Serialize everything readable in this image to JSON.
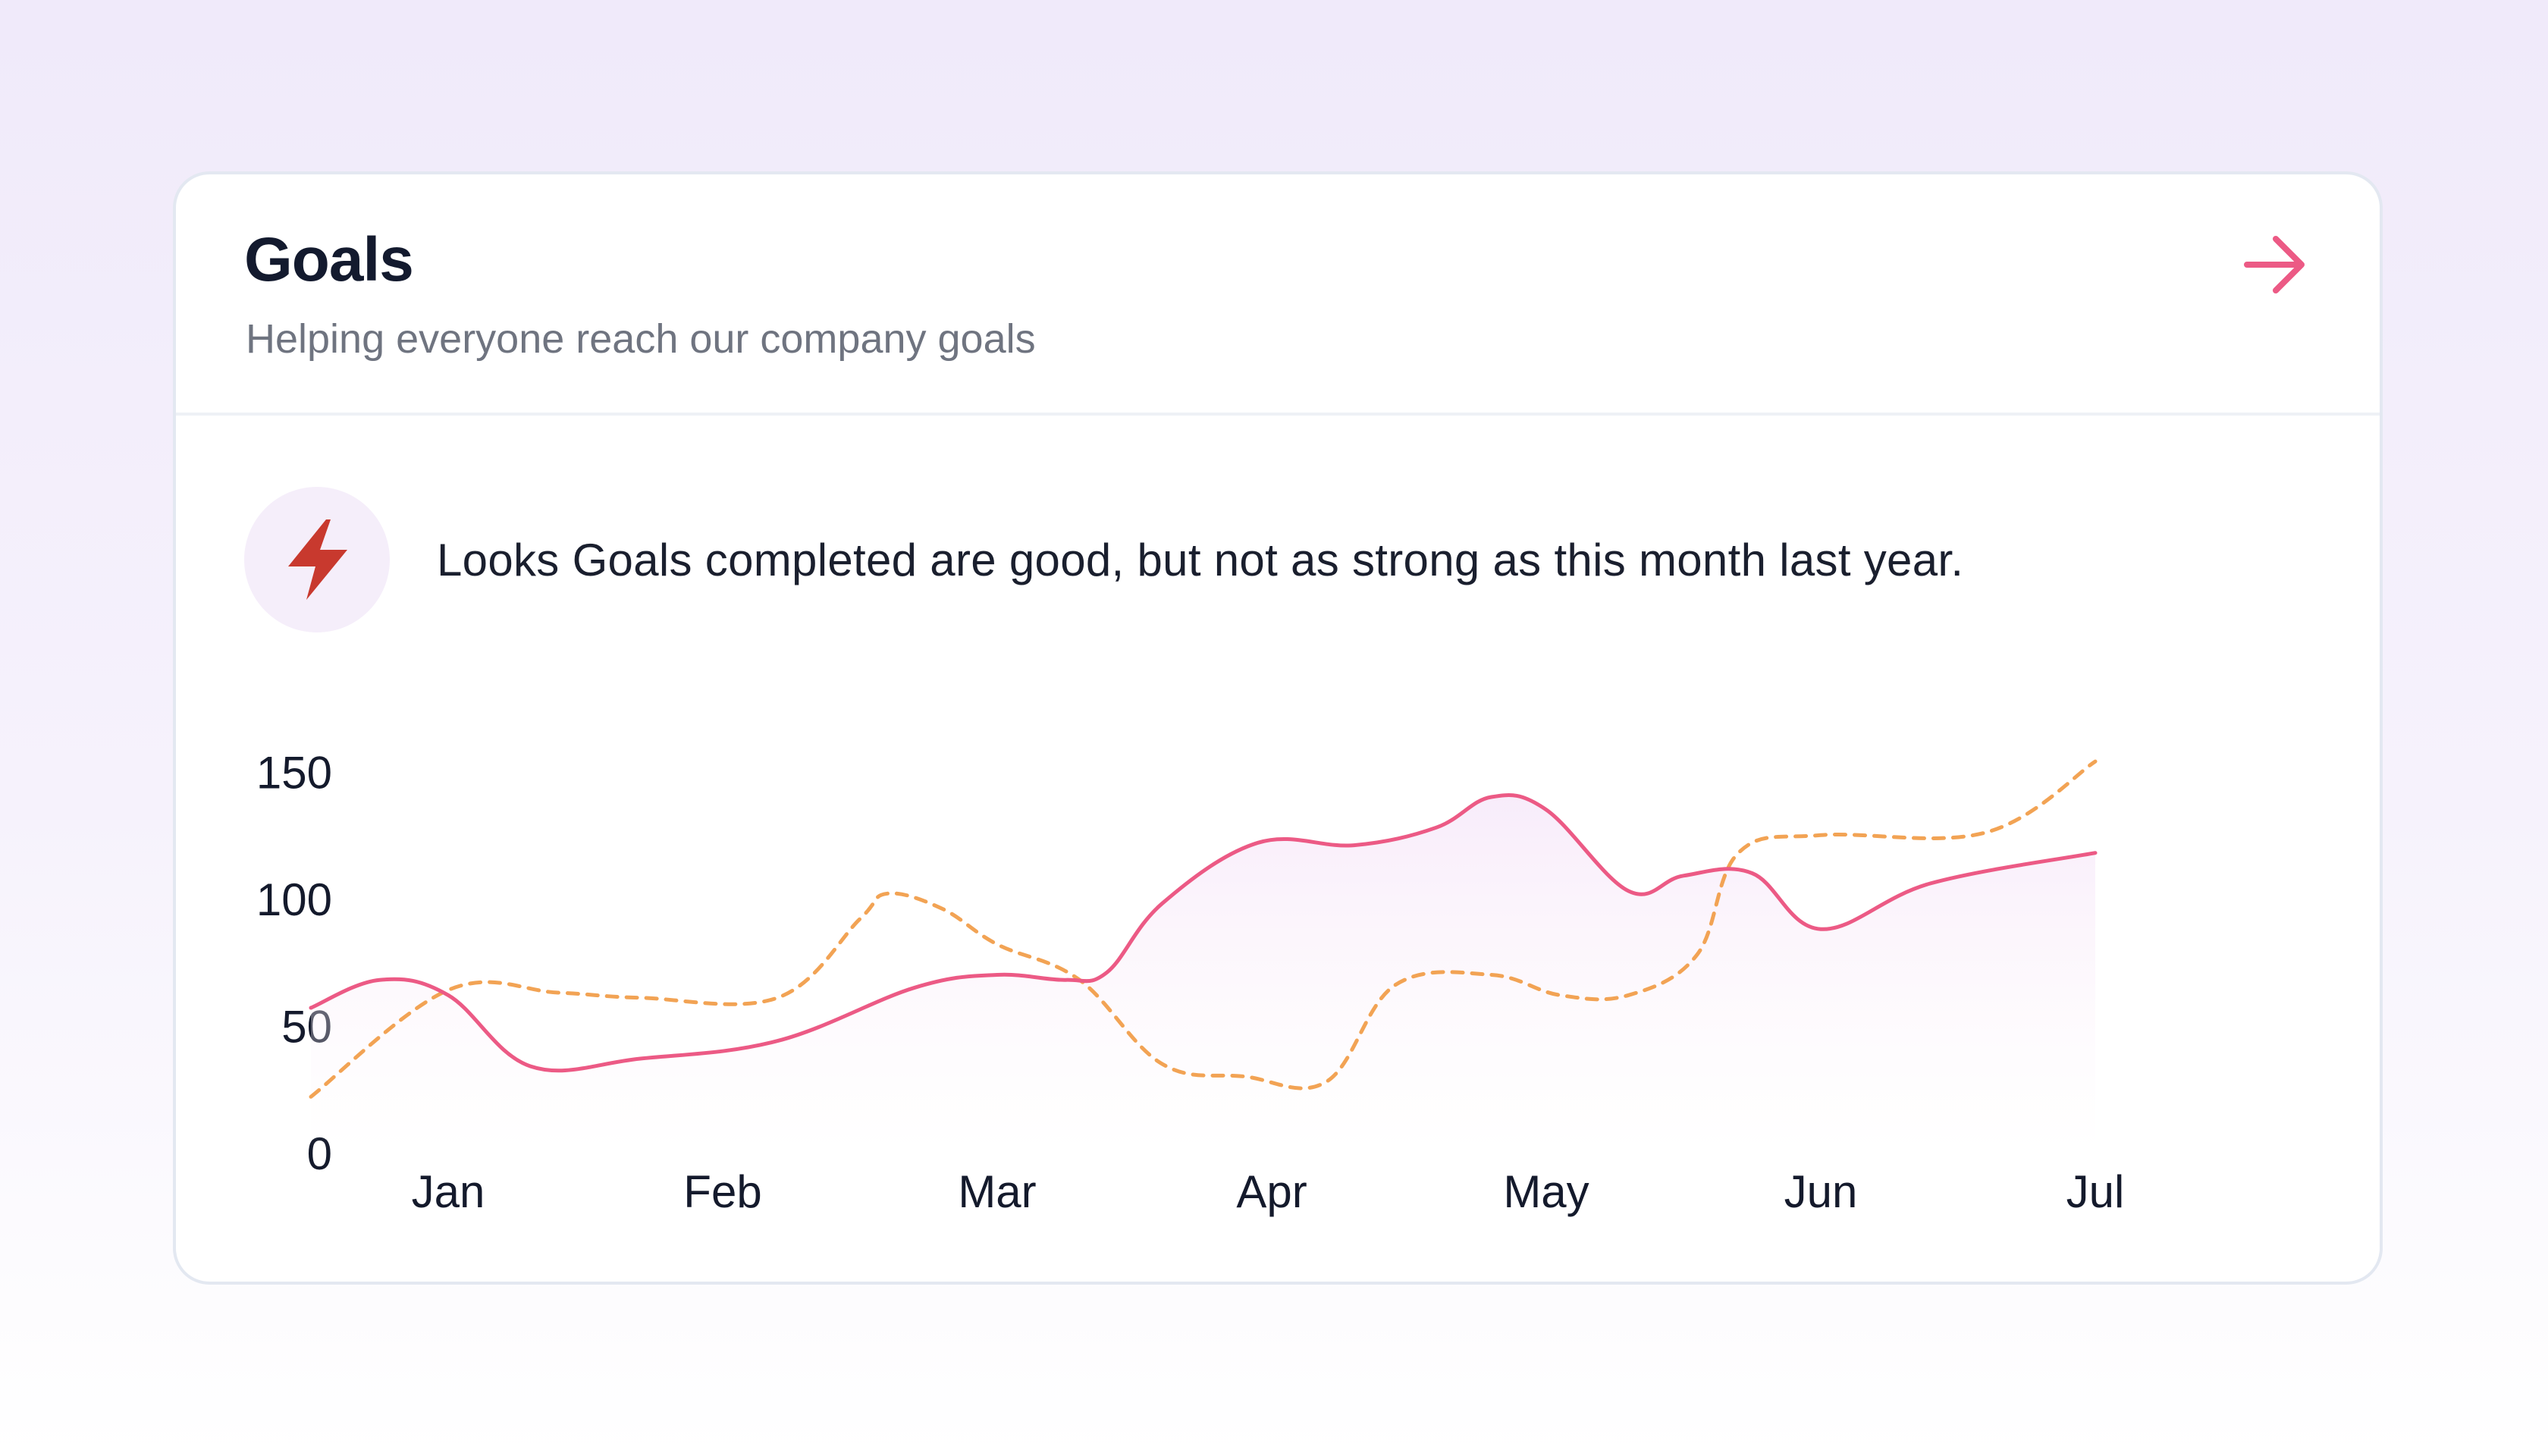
{
  "card": {
    "title": "Goals",
    "subtitle": "Helping everyone reach our company goals",
    "action_icon": "arrow-right-icon"
  },
  "insight": {
    "icon": "lightning-bolt-icon",
    "text": "Looks Goals completed are good, but not as strong as this month last year."
  },
  "colors": {
    "primary_series": "#ec5a85",
    "comparison_series": "#f2a354",
    "icon_bg": "#f5eefa",
    "bolt": "#c8392e"
  },
  "chart_data": {
    "type": "line",
    "categories": [
      "Jan",
      "Feb",
      "Mar",
      "Apr",
      "May",
      "Jun",
      "Jul"
    ],
    "yticks": [
      "0",
      "50",
      "100",
      "150"
    ],
    "ylim": [
      0,
      150
    ],
    "legend": "none",
    "grid": false,
    "series": [
      {
        "style": "solid",
        "x": [
          0.5,
          0.75,
          1.0,
          1.3,
          1.7,
          2.2,
          2.7,
          3.0,
          3.25,
          3.4,
          3.6,
          3.95,
          4.3,
          4.6,
          4.8,
          5.0,
          5.3,
          5.5,
          5.75,
          6.0,
          6.4,
          7.0
        ],
        "y": [
          57,
          68,
          62,
          34,
          37,
          44,
          65,
          70,
          68,
          71,
          98,
          122,
          121,
          128,
          140,
          135,
          103,
          109,
          110,
          88,
          106,
          118
        ]
      },
      {
        "style": "dashed",
        "x": [
          0.5,
          1.0,
          1.4,
          1.7,
          2.2,
          2.5,
          2.6,
          2.8,
          3.0,
          3.3,
          3.6,
          3.9,
          4.2,
          4.45,
          4.8,
          5.05,
          5.3,
          5.55,
          5.7,
          6.0,
          6.6,
          7.0
        ],
        "y": [
          22,
          64,
          63,
          61,
          61,
          92,
          102,
          96,
          82,
          68,
          35,
          30,
          28,
          66,
          70,
          62,
          62,
          78,
          118,
          125,
          126,
          154
        ]
      }
    ]
  }
}
